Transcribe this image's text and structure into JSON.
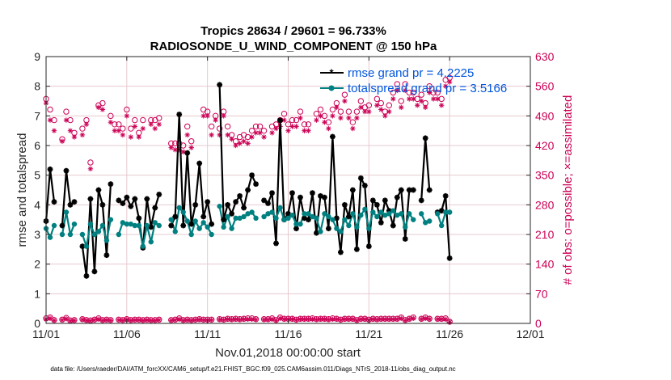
{
  "chart_data": {
    "type": "line",
    "title": "Tropics 28634 / 29601 = 96.733%",
    "subtitle": "RADIOSONDE_U_WIND_COMPONENT @ 150 hPa",
    "xlabel": "Nov.01,2018 00:00:00 start",
    "ylabel": "rmse and totalspread",
    "ylabel_right": "# of obs: o=possible; ×=assimilated",
    "footnote": "data file: /Users/raeder/DAI/ATM_forcXX/CAM6_setup/f.e21.FHIST_BGC.f09_025.CAM6assim.011/Diags_NTrS_2018-11/obs_diag_output.nc",
    "xlim": [
      0,
      30
    ],
    "ylim": [
      0,
      9
    ],
    "ylim_right": [
      0,
      630
    ],
    "x_ticks": [
      0,
      5,
      10,
      15,
      20,
      25,
      30
    ],
    "x_tick_labels": [
      "11/01",
      "11/06",
      "11/11",
      "11/16",
      "11/21",
      "11/26",
      "12/01"
    ],
    "y_ticks": [
      "0",
      "1",
      "2",
      "3",
      "4",
      "5",
      "6",
      "7",
      "8",
      "9"
    ],
    "y_ticks_right": [
      "0",
      "70",
      "140",
      "210",
      "280",
      "350",
      "420",
      "490",
      "560",
      "630"
    ],
    "grid": true,
    "colors": {
      "rmse": "#000000",
      "spread": "#008080",
      "obs": "#cc0055",
      "right_axis": "#cc0055",
      "legend_text": "#0055dd",
      "grid": "#e7c9cf"
    },
    "legend": {
      "placement": "top-right",
      "entries": [
        "rmse grand pr = 4.2225",
        "totalspread grand pr = 3.5166"
      ]
    },
    "series": [
      {
        "name": "rmse",
        "step": 0.25,
        "values": [
          3.45,
          5.2,
          4.1,
          null,
          3.3,
          5.15,
          4.0,
          4.1,
          null,
          2.6,
          1.6,
          4.2,
          1.75,
          4.5,
          4.0,
          2.3,
          4.7,
          null,
          4.15,
          4.05,
          4.25,
          3.95,
          4.2,
          3.55,
          2.55,
          4.2,
          3.25,
          3.9,
          4.35,
          null,
          null,
          3.3,
          3.6,
          7.05,
          3.3,
          5.75,
          3.35,
          4.0,
          5.4,
          3.6,
          4.1,
          3.35,
          null,
          8.05,
          3.5,
          4.0,
          3.7,
          4.1,
          4.3,
          3.9,
          4.5,
          5.0,
          4.7,
          null,
          4.15,
          4.05,
          4.4,
          2.7,
          6.85,
          3.5,
          3.7,
          4.4,
          3.2,
          4.25,
          3.55,
          3.5,
          4.4,
          3.05,
          4.3,
          4.25,
          3.2,
          6.3,
          3.55,
          2.4,
          4.0,
          3.6,
          4.5,
          2.5,
          4.9,
          4.65,
          2.6,
          4.15,
          4.0,
          3.4,
          4.15,
          3.8,
          3.3,
          4.25,
          4.5,
          2.85,
          4.5,
          4.5,
          null,
          4.15,
          6.25,
          4.5,
          null,
          3.75,
          3.8,
          4.3,
          2.2
        ]
      },
      {
        "name": "totalspread",
        "step": 0.25,
        "values": [
          3.2,
          2.9,
          3.3,
          null,
          3.0,
          3.75,
          3.0,
          3.35,
          null,
          3.0,
          2.6,
          3.35,
          3.0,
          3.1,
          3.3,
          2.8,
          3.5,
          null,
          3.0,
          3.4,
          3.35,
          3.35,
          3.3,
          3.3,
          2.6,
          3.3,
          2.75,
          3.4,
          3.3,
          null,
          null,
          3.5,
          3.1,
          3.9,
          3.75,
          3.45,
          3.0,
          3.45,
          3.2,
          3.4,
          3.25,
          3.0,
          null,
          3.95,
          3.25,
          3.6,
          3.2,
          3.55,
          3.55,
          3.6,
          3.7,
          3.75,
          3.55,
          null,
          3.6,
          3.7,
          3.75,
          3.55,
          3.9,
          3.5,
          3.55,
          3.65,
          3.35,
          3.35,
          3.7,
          3.7,
          3.6,
          3.55,
          3.1,
          3.7,
          3.6,
          3.5,
          3.2,
          3.1,
          3.5,
          3.3,
          3.7,
          3.25,
          3.65,
          3.85,
          3.2,
          3.75,
          3.6,
          3.75,
          3.65,
          3.7,
          3.8,
          3.65,
          3.7,
          3.25,
          3.7,
          3.5,
          null,
          3.7,
          3.4,
          3.45,
          null,
          3.7,
          3.3,
          3.75,
          3.75
        ]
      },
      {
        "name": "obs possible",
        "marker": "circle",
        "step": 0.25,
        "values": [
          530,
          505,
          480,
          null,
          435,
          500,
          480,
          450,
          null,
          460,
          480,
          380,
          null,
          515,
          520,
          null,
          490,
          470,
          470,
          460,
          505,
          460,
          480,
          450,
          480,
          null,
          480,
          480,
          485,
          null,
          null,
          425,
          425,
          425,
          420,
          465,
          430,
          null,
          null,
          505,
          500,
          465,
          490,
          460,
          500,
          465,
          445,
          430,
          440,
          445,
          440,
          455,
          465,
          465,
          455,
          null,
          465,
          470,
          480,
          495,
          470,
          480,
          480,
          500,
          470,
          470,
          null,
          495,
          505,
          490,
          475,
          505,
          520,
          500,
          540,
          500,
          475,
          500,
          525,
          510,
          515,
          null,
          530,
          520,
          500,
          515,
          545,
          565,
          525,
          565,
          545,
          545,
          530,
          540,
          520,
          560,
          545,
          545,
          530,
          575,
          580
        ]
      },
      {
        "name": "obs assimilated",
        "marker": "asterisk",
        "step": 0.25,
        "values": [
          520,
          480,
          455,
          null,
          430,
          480,
          455,
          440,
          null,
          445,
          470,
          365,
          null,
          510,
          505,
          null,
          475,
          455,
          455,
          445,
          490,
          440,
          465,
          440,
          460,
          null,
          470,
          460,
          470,
          null,
          null,
          415,
          410,
          410,
          405,
          445,
          415,
          null,
          null,
          490,
          490,
          445,
          480,
          445,
          490,
          445,
          435,
          420,
          425,
          430,
          425,
          440,
          450,
          450,
          440,
          null,
          450,
          460,
          465,
          480,
          455,
          465,
          465,
          485,
          455,
          455,
          null,
          480,
          490,
          475,
          460,
          490,
          510,
          485,
          525,
          485,
          460,
          485,
          510,
          500,
          500,
          null,
          515,
          505,
          490,
          500,
          530,
          550,
          510,
          550,
          530,
          530,
          515,
          525,
          510,
          545,
          530,
          530,
          515,
          560,
          570
        ]
      },
      {
        "name": "obs bottom possible",
        "marker": "circle",
        "step": 0.25,
        "values": [
          12,
          14,
          8,
          null,
          9,
          13,
          7,
          8,
          null,
          10,
          8,
          7,
          9,
          12,
          8,
          9,
          8,
          null,
          9,
          8,
          10,
          8,
          9,
          9,
          8,
          9,
          8,
          8,
          9,
          null,
          null,
          8,
          9,
          12,
          8,
          9,
          8,
          9,
          10,
          9,
          9,
          9,
          null,
          10,
          9,
          11,
          10,
          11,
          10,
          11,
          12,
          12,
          10,
          null,
          10,
          10,
          12,
          8,
          14,
          11,
          11,
          11,
          9,
          11,
          11,
          11,
          12,
          10,
          11,
          11,
          10,
          12,
          11,
          9,
          11,
          11,
          11,
          8,
          11,
          11,
          9,
          11,
          10,
          11,
          11,
          11,
          11,
          11,
          14,
          8,
          11,
          14,
          null,
          11,
          14,
          11,
          null,
          11,
          11,
          12,
          4
        ]
      },
      {
        "name": "obs bottom assimilated",
        "marker": "asterisk",
        "step": 0.25,
        "values": [
          10,
          12,
          7,
          null,
          8,
          11,
          6,
          7,
          null,
          9,
          7,
          6,
          8,
          10,
          7,
          8,
          7,
          null,
          8,
          7,
          9,
          7,
          8,
          8,
          7,
          8,
          7,
          7,
          8,
          null,
          null,
          7,
          8,
          10,
          7,
          8,
          7,
          8,
          9,
          8,
          8,
          8,
          null,
          9,
          8,
          10,
          9,
          10,
          9,
          10,
          10,
          10,
          9,
          null,
          9,
          9,
          10,
          7,
          12,
          10,
          10,
          10,
          8,
          10,
          10,
          10,
          10,
          9,
          10,
          10,
          9,
          10,
          10,
          8,
          10,
          10,
          10,
          7,
          10,
          10,
          8,
          10,
          9,
          10,
          10,
          10,
          10,
          10,
          12,
          7,
          10,
          12,
          null,
          10,
          12,
          10,
          null,
          10,
          10,
          10,
          3
        ]
      }
    ]
  }
}
